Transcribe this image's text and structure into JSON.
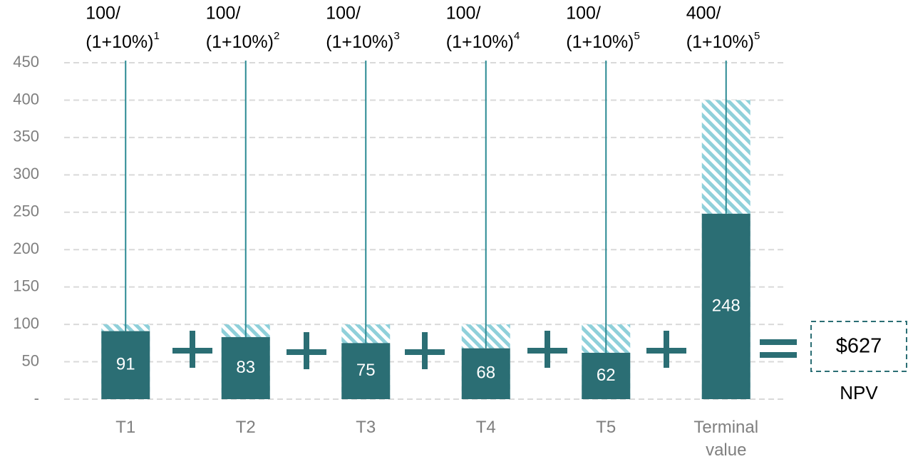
{
  "chart_data": {
    "type": "bar",
    "categories": [
      "T1",
      "T2",
      "T3",
      "T4",
      "T5",
      "Terminal value"
    ],
    "series": [
      {
        "color": "#8fd0da",
        "pattern": "hatch",
        "values": [
          100,
          100,
          100,
          100,
          100,
          400
        ]
      },
      {
        "color": "#2b6e74",
        "values": [
          91,
          83,
          75,
          68,
          62,
          248
        ]
      }
    ],
    "formulas": [
      {
        "numerator": "100/",
        "base": "(1+10%)",
        "exponent": "1"
      },
      {
        "numerator": "100/",
        "base": "(1+10%)",
        "exponent": "2"
      },
      {
        "numerator": "100/",
        "base": "(1+10%)",
        "exponent": "3"
      },
      {
        "numerator": "100/",
        "base": "(1+10%)",
        "exponent": "4"
      },
      {
        "numerator": "100/",
        "base": "(1+10%)",
        "exponent": "5"
      },
      {
        "numerator": "400/",
        "base": "(1+10%)",
        "exponent": "5"
      }
    ],
    "result": {
      "value_label": "$627",
      "label": "NPV"
    },
    "ylim": [
      0,
      450
    ],
    "yticks": [
      {
        "value": 0,
        "label": "-"
      },
      50,
      100,
      150,
      200,
      250,
      300,
      350,
      400,
      450
    ],
    "grid": true
  }
}
